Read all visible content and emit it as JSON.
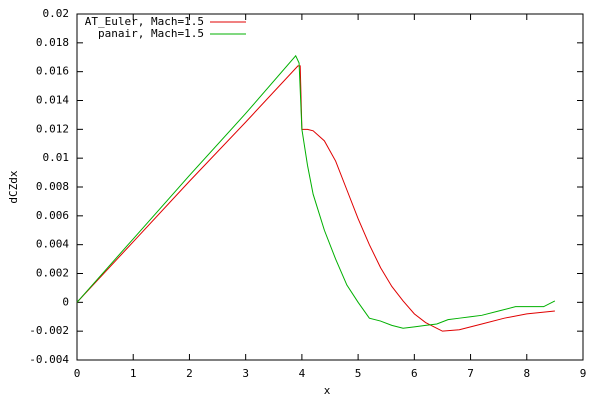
{
  "chart_data": {
    "type": "line",
    "x_label": "x",
    "y_label": "dCZdx",
    "xlim": [
      0,
      9
    ],
    "xticks": [
      0,
      1,
      2,
      3,
      4,
      5,
      6,
      7,
      8,
      9
    ],
    "ylim": [
      -0.004,
      0.02
    ],
    "yticks": [
      -0.004,
      -0.002,
      0,
      0.002,
      0.004,
      0.006,
      0.008,
      0.01,
      0.012,
      0.014,
      0.016,
      0.018,
      0.02
    ],
    "legend": "top-left",
    "series": [
      {
        "name": "AT_Euler, Mach=1.5",
        "color": "#e00000",
        "x": [
          0,
          1,
          2,
          3,
          3.93,
          3.97,
          4.0,
          4.1,
          4.2,
          4.4,
          4.6,
          4.8,
          5.0,
          5.2,
          5.4,
          5.6,
          5.8,
          6.0,
          6.2,
          6.5,
          6.8,
          7.2,
          7.6,
          8.0,
          8.5
        ],
        "values": [
          0,
          0.0042,
          0.0084,
          0.0125,
          0.0164,
          0.0164,
          0.012,
          0.012,
          0.0119,
          0.0112,
          0.0098,
          0.0078,
          0.0058,
          0.004,
          0.0024,
          0.0011,
          0.0001,
          -0.0008,
          -0.0014,
          -0.002,
          -0.0019,
          -0.0015,
          -0.0011,
          -0.0008,
          -0.0006
        ]
      },
      {
        "name": "panair, Mach=1.5",
        "color": "#00b000",
        "x": [
          0,
          1,
          2,
          3,
          3.89,
          3.95,
          4.0,
          4.1,
          4.2,
          4.4,
          4.6,
          4.8,
          5.0,
          5.2,
          5.4,
          5.6,
          5.8,
          6.0,
          6.2,
          6.4,
          6.6,
          6.8,
          7.0,
          7.2,
          7.5,
          7.8,
          8.0,
          8.3,
          8.5
        ],
        "values": [
          0,
          0.0044,
          0.0088,
          0.0131,
          0.0171,
          0.0166,
          0.012,
          0.0095,
          0.0075,
          0.005,
          0.003,
          0.0012,
          0,
          -0.0011,
          -0.0013,
          -0.0016,
          -0.0018,
          -0.0017,
          -0.0016,
          -0.0015,
          -0.0012,
          -0.0011,
          -0.001,
          -0.0009,
          -0.0006,
          -0.0003,
          -0.0003,
          -0.0003,
          0.0001
        ]
      }
    ]
  }
}
